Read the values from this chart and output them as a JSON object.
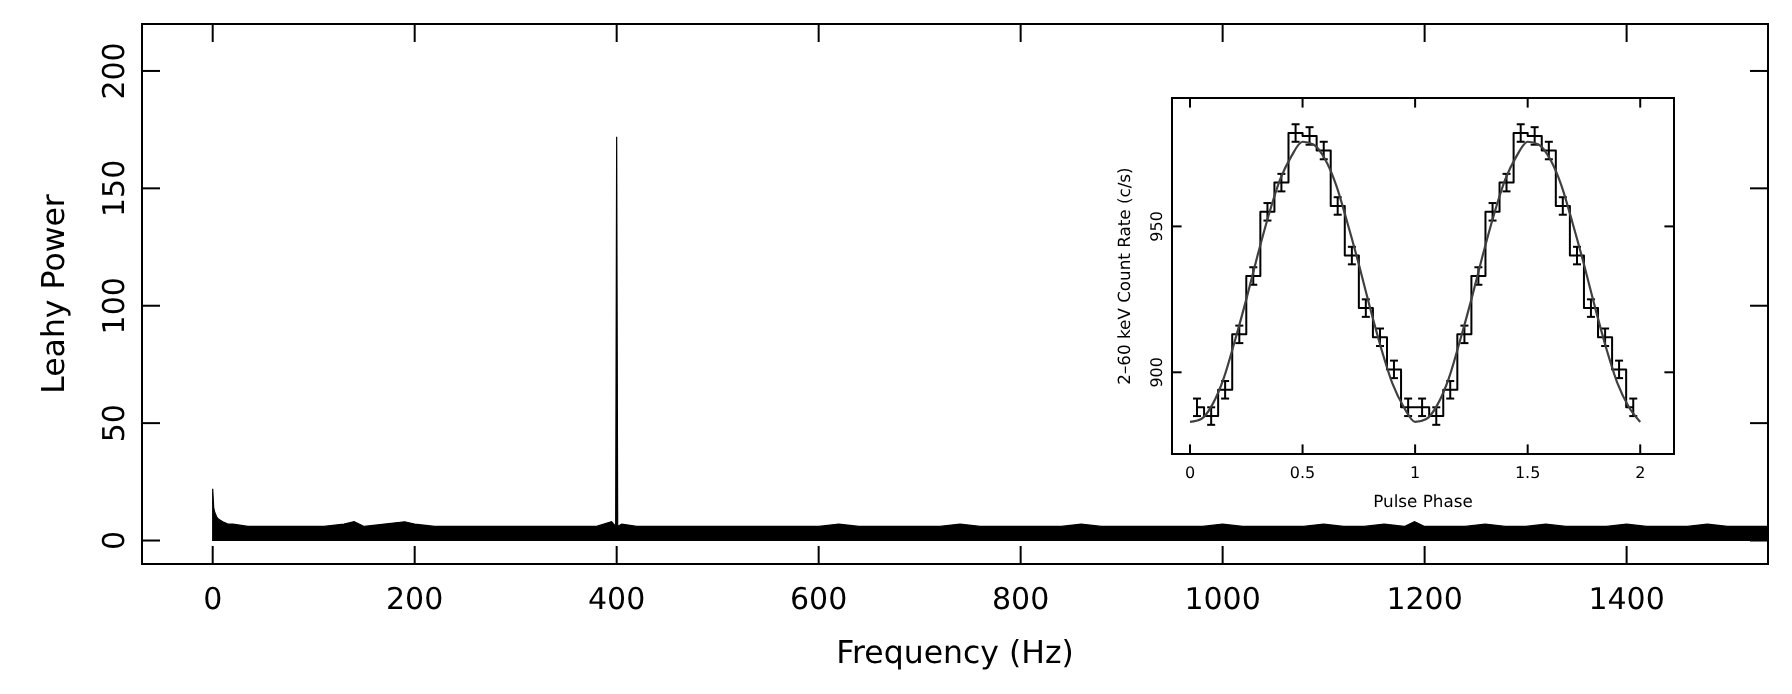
{
  "chart_data": [
    {
      "type": "area",
      "xlabel": "Frequency (Hz)",
      "ylabel": "Leahy Power",
      "xlim": [
        -70,
        1540
      ],
      "ylim": [
        -10,
        220
      ],
      "xticks": [
        0,
        200,
        400,
        600,
        800,
        1000,
        1200,
        1400
      ],
      "yticks": [
        0,
        50,
        100,
        150,
        200
      ],
      "grid": false,
      "series": [
        {
          "color": "#000000",
          "x": [
            0,
            1,
            2,
            4,
            6,
            10,
            15,
            20,
            35,
            50,
            70,
            90,
            110,
            130,
            140,
            150,
            170,
            190,
            200,
            220,
            240,
            260,
            280,
            300,
            320,
            340,
            360,
            380,
            395,
            399,
            400,
            401,
            405,
            420,
            440,
            460,
            480,
            500,
            520,
            540,
            560,
            580,
            600,
            620,
            640,
            660,
            680,
            700,
            720,
            740,
            760,
            780,
            800,
            820,
            840,
            860,
            880,
            900,
            920,
            940,
            960,
            980,
            1000,
            1020,
            1040,
            1060,
            1080,
            1100,
            1120,
            1140,
            1160,
            1180,
            1190,
            1200,
            1220,
            1240,
            1260,
            1280,
            1300,
            1320,
            1340,
            1360,
            1380,
            1400,
            1420,
            1440,
            1460,
            1480,
            1500,
            1520,
            1540
          ],
          "values": [
            22,
            14,
            12,
            10,
            9,
            8,
            7,
            7,
            6,
            6,
            6,
            6,
            6,
            7,
            8,
            6,
            7,
            8,
            7,
            6,
            6,
            6,
            6,
            6,
            6,
            6,
            6,
            6,
            8,
            6,
            172,
            6,
            7,
            6,
            6,
            6,
            6,
            6,
            6,
            6,
            6,
            6,
            6,
            7,
            6,
            6,
            6,
            6,
            6,
            7,
            6,
            6,
            6,
            6,
            6,
            7,
            6,
            6,
            6,
            6,
            6,
            6,
            7,
            6,
            6,
            6,
            6,
            7,
            6,
            6,
            7,
            6,
            8,
            6,
            6,
            6,
            7,
            6,
            6,
            7,
            6,
            6,
            6,
            7,
            6,
            6,
            6,
            7,
            6,
            6,
            6
          ]
        }
      ]
    },
    {
      "type": "step",
      "xlabel": "Pulse Phase",
      "ylabel": "2–60 keV Count Rate (c/s)",
      "xlim": [
        -0.08,
        2.15
      ],
      "ylim": [
        872,
        994
      ],
      "xticks": [
        0,
        0.5,
        1,
        1.5,
        2
      ],
      "yticks": [
        900,
        950
      ],
      "grid": false,
      "series": [
        {
          "color": "#000000",
          "x": [
            0.031,
            0.094,
            0.156,
            0.219,
            0.281,
            0.344,
            0.406,
            0.469,
            0.531,
            0.594,
            0.656,
            0.719,
            0.781,
            0.844,
            0.906,
            0.969,
            1.031,
            1.094,
            1.156,
            1.219,
            1.281,
            1.344,
            1.406,
            1.469,
            1.531,
            1.594,
            1.656,
            1.719,
            1.781,
            1.844,
            1.906,
            1.969
          ],
          "values": [
            888,
            885,
            894,
            913,
            933,
            955,
            965,
            982,
            981,
            976,
            957,
            940,
            922,
            912,
            901,
            888,
            888,
            885,
            894,
            913,
            933,
            955,
            965,
            982,
            981,
            976,
            957,
            940,
            922,
            912,
            901,
            888
          ],
          "errors": [
            3,
            3,
            3,
            3,
            3,
            3,
            3,
            3,
            3,
            3,
            3,
            3,
            3,
            3,
            3,
            3,
            3,
            3,
            3,
            3,
            3,
            3,
            3,
            3,
            3,
            3,
            3,
            3,
            3,
            3,
            3,
            3
          ]
        },
        {
          "type": "line",
          "color": "#404040",
          "x": [
            0,
            0.05,
            0.1,
            0.15,
            0.2,
            0.25,
            0.3,
            0.35,
            0.4,
            0.45,
            0.5,
            0.55,
            0.6,
            0.65,
            0.7,
            0.75,
            0.8,
            0.85,
            0.9,
            0.95,
            1,
            1.05,
            1.1,
            1.15,
            1.2,
            1.25,
            1.3,
            1.35,
            1.4,
            1.45,
            1.5,
            1.55,
            1.6,
            1.65,
            1.7,
            1.75,
            1.8,
            1.85,
            1.9,
            1.95,
            2
          ],
          "values": [
            883,
            884,
            889,
            898,
            911,
            925,
            940,
            954,
            966,
            974,
            979,
            978,
            973,
            964,
            951,
            937,
            922,
            908,
            896,
            888,
            883,
            884,
            889,
            898,
            911,
            925,
            940,
            954,
            966,
            974,
            979,
            978,
            973,
            964,
            951,
            937,
            922,
            908,
            896,
            888,
            883
          ]
        }
      ]
    }
  ]
}
